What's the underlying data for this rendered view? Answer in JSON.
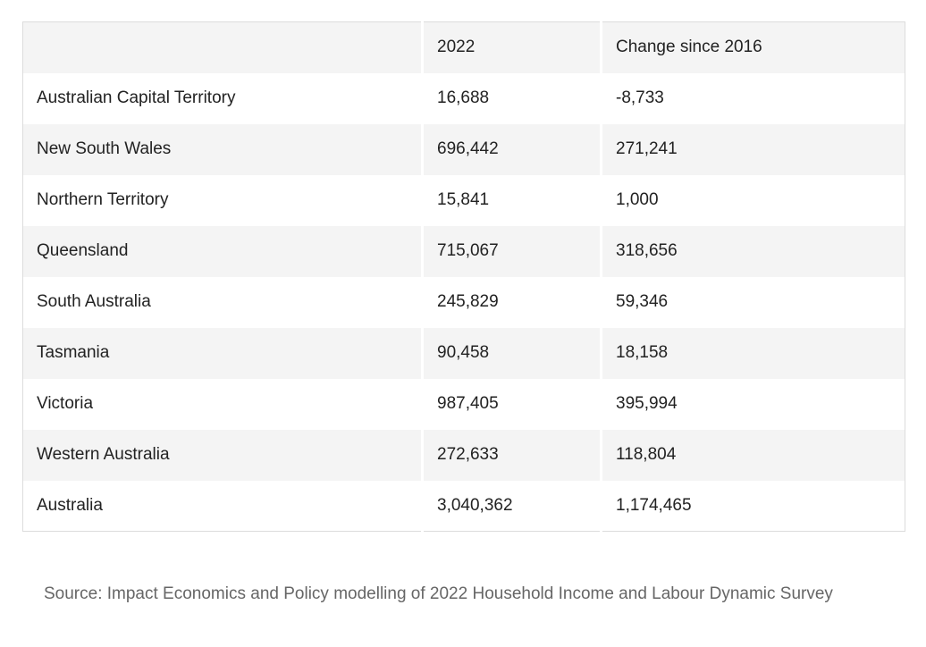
{
  "table": {
    "headers": [
      "",
      "2022",
      "Change since 2016"
    ],
    "rows": [
      [
        "Australian Capital Territory",
        "16,688",
        "-8,733"
      ],
      [
        "New South Wales",
        "696,442",
        "271,241"
      ],
      [
        "Northern Territory",
        "15,841",
        "1,000"
      ],
      [
        "Queensland",
        "715,067",
        "318,656"
      ],
      [
        "South Australia",
        "245,829",
        "59,346"
      ],
      [
        "Tasmania",
        "90,458",
        "18,158"
      ],
      [
        "Victoria",
        "987,405",
        "395,994"
      ],
      [
        "Western Australia",
        "272,633",
        "118,804"
      ],
      [
        "Australia",
        "3,040,362",
        "1,174,465"
      ]
    ]
  },
  "source": "Source: Impact Economics and Policy modelling of 2022 Household Income and Labour Dynamic Survey"
}
